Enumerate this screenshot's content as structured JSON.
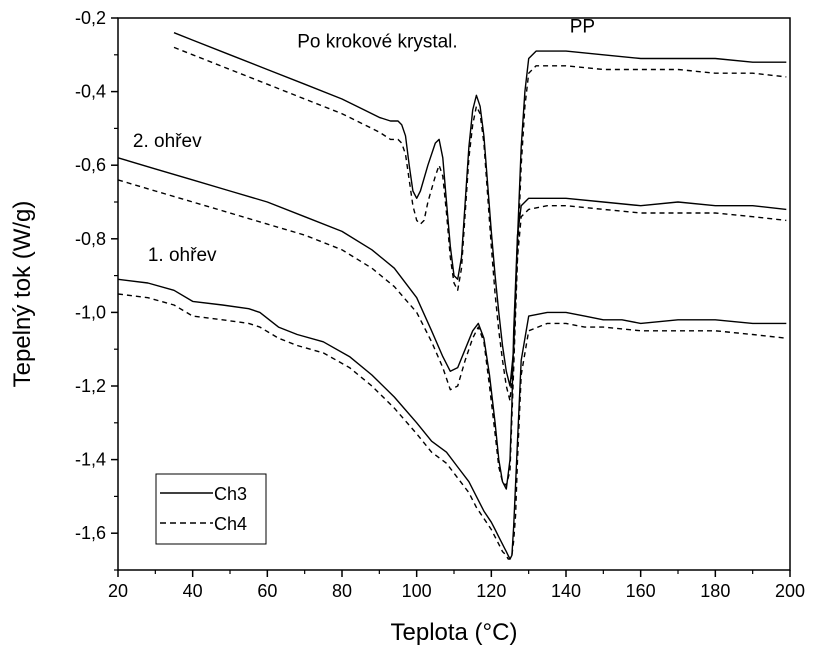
{
  "chart_data": {
    "type": "line",
    "title": "",
    "xlabel": "Teplota (°C)",
    "ylabel": "Tepelný tok (W/g)",
    "xlim": [
      20,
      200
    ],
    "ylim": [
      -1.7,
      -0.2
    ],
    "x_ticks": [
      "20",
      "40",
      "60",
      "80",
      "100",
      "120",
      "140",
      "160",
      "180",
      "200"
    ],
    "y_ticks": [
      "-0,2",
      "-0,4",
      "-0,6",
      "-0,8",
      "-1,0",
      "-1,2",
      "-1,4",
      "-1,6"
    ],
    "x_tick_values": [
      20,
      40,
      60,
      80,
      100,
      120,
      140,
      160,
      180,
      200
    ],
    "y_tick_values": [
      -0.2,
      -0.4,
      -0.6,
      -0.8,
      -1.0,
      -1.2,
      -1.4,
      -1.6
    ],
    "grid": false,
    "legend_position": "bottom-left",
    "annotations": [
      {
        "text": "Po krokové krystal.",
        "x": 68,
        "y": -0.28
      },
      {
        "text": "PP",
        "x": 141,
        "y": -0.24
      },
      {
        "text": "2. ohřev",
        "x": 24,
        "y": -0.55
      },
      {
        "text": "1. ohřev",
        "x": 28,
        "y": -0.86
      }
    ],
    "series": [
      {
        "name": "Ch3",
        "group": "1. ohřev",
        "style": "solid",
        "x": [
          20,
          28,
          35,
          40,
          48,
          55,
          58,
          63,
          68,
          75,
          82,
          88,
          94,
          100,
          104,
          108,
          111,
          114,
          116,
          118,
          120,
          121,
          122,
          123,
          123.5,
          124,
          124.5,
          125,
          125.5,
          126,
          127,
          128,
          130,
          135,
          140,
          145,
          150,
          155,
          160,
          170,
          180,
          190,
          199
        ],
        "y": [
          -0.91,
          -0.92,
          -0.94,
          -0.97,
          -0.98,
          -0.99,
          -1.0,
          -1.04,
          -1.06,
          -1.08,
          -1.12,
          -1.17,
          -1.23,
          -1.3,
          -1.35,
          -1.38,
          -1.42,
          -1.46,
          -1.5,
          -1.54,
          -1.57,
          -1.59,
          -1.61,
          -1.63,
          -1.64,
          -1.65,
          -1.66,
          -1.67,
          -1.66,
          -1.58,
          -1.35,
          -1.13,
          -1.01,
          -1.0,
          -1.0,
          -1.01,
          -1.02,
          -1.02,
          -1.03,
          -1.02,
          -1.02,
          -1.03,
          -1.03
        ]
      },
      {
        "name": "Ch4",
        "group": "1. ohřev",
        "style": "dashed",
        "x": [
          20,
          28,
          35,
          40,
          48,
          55,
          58,
          63,
          68,
          75,
          82,
          88,
          94,
          100,
          104,
          108,
          111,
          114,
          116,
          118,
          120,
          121,
          122,
          123,
          124,
          124.5,
          125,
          125.5,
          126,
          126.5,
          127,
          128,
          130,
          135,
          140,
          145,
          150,
          160,
          170,
          180,
          190,
          199
        ],
        "y": [
          -0.95,
          -0.96,
          -0.98,
          -1.01,
          -1.02,
          -1.03,
          -1.04,
          -1.07,
          -1.09,
          -1.11,
          -1.15,
          -1.2,
          -1.26,
          -1.33,
          -1.38,
          -1.41,
          -1.45,
          -1.49,
          -1.53,
          -1.56,
          -1.59,
          -1.61,
          -1.63,
          -1.65,
          -1.66,
          -1.67,
          -1.67,
          -1.66,
          -1.62,
          -1.55,
          -1.4,
          -1.17,
          -1.05,
          -1.03,
          -1.03,
          -1.04,
          -1.04,
          -1.05,
          -1.05,
          -1.05,
          -1.06,
          -1.07
        ]
      },
      {
        "name": "Ch3",
        "group": "2. ohřev",
        "style": "solid",
        "x": [
          20,
          30,
          40,
          50,
          60,
          70,
          80,
          88,
          94,
          100,
          104,
          107,
          109,
          111,
          113,
          115,
          116.5,
          118,
          119.5,
          121,
          122,
          123,
          124,
          125,
          125.5,
          126,
          127,
          128,
          130,
          135,
          140,
          150,
          160,
          170,
          180,
          190,
          199
        ],
        "y": [
          -0.58,
          -0.61,
          -0.64,
          -0.67,
          -0.7,
          -0.74,
          -0.78,
          -0.83,
          -0.88,
          -0.96,
          -1.05,
          -1.12,
          -1.16,
          -1.15,
          -1.1,
          -1.05,
          -1.03,
          -1.07,
          -1.17,
          -1.3,
          -1.4,
          -1.46,
          -1.48,
          -1.4,
          -1.25,
          -1.05,
          -0.79,
          -0.71,
          -0.69,
          -0.69,
          -0.69,
          -0.7,
          -0.71,
          -0.7,
          -0.71,
          -0.71,
          -0.72
        ]
      },
      {
        "name": "Ch4",
        "group": "2. ohřev",
        "style": "dashed",
        "x": [
          20,
          30,
          40,
          50,
          60,
          70,
          80,
          88,
          94,
          100,
          104,
          107,
          109,
          111,
          113,
          115,
          116.5,
          118,
          119.5,
          121,
          122,
          123,
          124,
          125,
          126,
          127,
          128,
          130,
          135,
          140,
          150,
          160,
          170,
          180,
          190,
          199
        ],
        "y": [
          -0.64,
          -0.67,
          -0.7,
          -0.73,
          -0.76,
          -0.79,
          -0.83,
          -0.88,
          -0.93,
          -1.0,
          -1.08,
          -1.15,
          -1.21,
          -1.2,
          -1.13,
          -1.07,
          -1.04,
          -1.08,
          -1.2,
          -1.33,
          -1.42,
          -1.46,
          -1.47,
          -1.43,
          -1.15,
          -0.85,
          -0.74,
          -0.72,
          -0.71,
          -0.71,
          -0.72,
          -0.73,
          -0.73,
          -0.73,
          -0.74,
          -0.75
        ]
      },
      {
        "name": "Ch3",
        "group": "Po krokové krystal.",
        "style": "solid",
        "x": [
          35,
          40,
          50,
          60,
          70,
          80,
          86,
          90,
          93,
          95,
          96,
          97,
          98,
          99,
          100,
          101,
          103,
          105,
          106,
          107,
          108,
          109,
          110,
          111,
          112,
          113,
          114,
          115,
          116,
          117,
          118,
          119,
          120,
          121,
          122,
          123,
          124,
          125,
          126,
          127,
          128,
          129,
          130,
          132,
          135,
          140,
          150,
          160,
          165,
          170,
          180,
          190,
          199
        ],
        "y": [
          -0.24,
          -0.26,
          -0.3,
          -0.34,
          -0.38,
          -0.42,
          -0.45,
          -0.47,
          -0.48,
          -0.48,
          -0.49,
          -0.52,
          -0.6,
          -0.67,
          -0.69,
          -0.67,
          -0.6,
          -0.54,
          -0.53,
          -0.58,
          -0.7,
          -0.82,
          -0.9,
          -0.91,
          -0.85,
          -0.7,
          -0.55,
          -0.45,
          -0.41,
          -0.44,
          -0.52,
          -0.65,
          -0.78,
          -0.9,
          -1.0,
          -1.09,
          -1.16,
          -1.2,
          -1.1,
          -0.8,
          -0.55,
          -0.4,
          -0.31,
          -0.29,
          -0.29,
          -0.29,
          -0.3,
          -0.31,
          -0.31,
          -0.31,
          -0.31,
          -0.32,
          -0.32
        ]
      },
      {
        "name": "Ch4",
        "group": "Po krokové krystal.",
        "style": "dashed",
        "x": [
          35,
          40,
          50,
          60,
          70,
          80,
          86,
          90,
          93,
          95,
          96,
          97,
          98,
          99,
          100,
          101,
          102,
          103,
          105,
          106,
          107,
          108,
          109,
          110,
          111,
          112,
          113,
          114,
          115,
          116,
          117,
          118,
          119,
          120,
          121,
          122,
          123,
          124,
          125,
          126,
          127,
          128,
          129,
          130,
          132,
          135,
          140,
          150,
          160,
          170,
          180,
          190,
          199
        ],
        "y": [
          -0.28,
          -0.3,
          -0.34,
          -0.38,
          -0.42,
          -0.46,
          -0.49,
          -0.51,
          -0.53,
          -0.53,
          -0.54,
          -0.57,
          -0.64,
          -0.71,
          -0.75,
          -0.76,
          -0.75,
          -0.7,
          -0.63,
          -0.6,
          -0.63,
          -0.73,
          -0.85,
          -0.92,
          -0.94,
          -0.88,
          -0.73,
          -0.58,
          -0.49,
          -0.44,
          -0.46,
          -0.54,
          -0.68,
          -0.82,
          -0.95,
          -1.05,
          -1.13,
          -1.2,
          -1.24,
          -1.12,
          -0.85,
          -0.6,
          -0.44,
          -0.35,
          -0.33,
          -0.33,
          -0.33,
          -0.34,
          -0.34,
          -0.34,
          -0.35,
          -0.35,
          -0.36
        ]
      }
    ]
  },
  "legend": {
    "items": [
      {
        "label": "Ch3",
        "style": "solid"
      },
      {
        "label": "Ch4",
        "style": "dashed"
      }
    ]
  },
  "colors": {
    "line": "#000000",
    "background": "#ffffff"
  }
}
